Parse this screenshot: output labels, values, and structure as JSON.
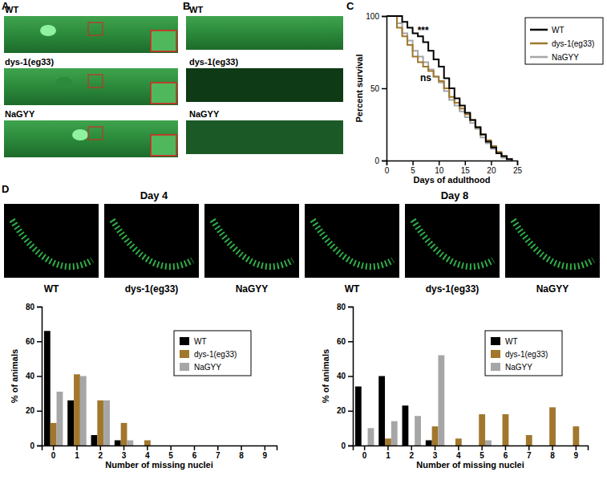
{
  "panels": {
    "labels": [
      "A",
      "B",
      "C",
      "D"
    ],
    "A": {
      "rows": [
        "WT",
        "dys-1(eg33)",
        "NaGYY"
      ]
    },
    "B": {
      "rows": [
        "WT",
        "dys-1(eg33)",
        "NaGYY"
      ]
    },
    "D": {
      "images": [
        "WT",
        "dys-1(eg33)",
        "NaGYY",
        "WT",
        "dys-1(eg33)",
        "NaGYY"
      ]
    }
  },
  "chart_data": [
    {
      "type": "line",
      "line_style": "step",
      "x": [
        0,
        2,
        3,
        4,
        5,
        6,
        7,
        8,
        9,
        10,
        11,
        12,
        13,
        14,
        15,
        16,
        17,
        18,
        19,
        20,
        21,
        22,
        23,
        24
      ],
      "series": [
        {
          "name": "WT",
          "color": "#000000",
          "values": [
            100,
            100,
            96,
            92,
            88,
            86,
            82,
            76,
            70,
            65,
            57,
            50,
            43,
            38,
            33,
            28,
            23,
            18,
            13,
            9,
            5,
            3,
            1,
            0
          ]
        },
        {
          "name": "dys-1(eg33)",
          "color": "#a0772d",
          "values": [
            100,
            92,
            86,
            80,
            72,
            68,
            65,
            62,
            58,
            55,
            50,
            44,
            40,
            36,
            32,
            28,
            23,
            18,
            14,
            10,
            6,
            3,
            1,
            0
          ]
        },
        {
          "name": "NaGYY",
          "color": "#a6a6a6",
          "values": [
            100,
            95,
            88,
            83,
            76,
            72,
            68,
            63,
            58,
            54,
            48,
            42,
            38,
            34,
            30,
            26,
            22,
            16,
            12,
            8,
            5,
            2,
            1,
            0
          ]
        }
      ],
      "xlabel": "Days of adulthood",
      "ylabel": "Percent survival",
      "xlim": [
        0,
        25
      ],
      "xticks": [
        0,
        5,
        10,
        15,
        20,
        25
      ],
      "ylim": [
        0,
        100
      ],
      "yticks": [
        0,
        50,
        100
      ],
      "legend": "right",
      "annotations": [
        {
          "text": "***",
          "x": 7,
          "y": 88
        },
        {
          "text": "ns",
          "x": 7.5,
          "y": 55
        }
      ]
    },
    {
      "type": "bar",
      "title": "Day 4",
      "categories": [
        "0",
        "1",
        "2",
        "3",
        "4",
        "5",
        "6",
        "7",
        "8",
        "9"
      ],
      "series": [
        {
          "name": "WT",
          "color": "#000000",
          "values": [
            66,
            26,
            6,
            3,
            0,
            0,
            0,
            0,
            0,
            0
          ]
        },
        {
          "name": "dys-1(eg33)",
          "color": "#a0772d",
          "values": [
            13,
            41,
            26,
            13,
            3,
            0,
            0,
            0,
            0,
            0
          ]
        },
        {
          "name": "NaGYY",
          "color": "#a6a6a6",
          "values": [
            31,
            40,
            26,
            3,
            0,
            0,
            0,
            0,
            0,
            0
          ]
        }
      ],
      "xlabel": "Number of missing nuclei",
      "ylabel": "% of animals",
      "ylim": [
        0,
        80
      ],
      "yticks": [
        0,
        20,
        40,
        60,
        80
      ],
      "legend": "upper right"
    },
    {
      "type": "bar",
      "title": "Day 8",
      "categories": [
        "0",
        "1",
        "2",
        "3",
        "4",
        "5",
        "6",
        "7",
        "8",
        "9"
      ],
      "series": [
        {
          "name": "WT",
          "color": "#000000",
          "values": [
            34,
            40,
            23,
            3,
            0,
            0,
            0,
            0,
            0,
            0
          ]
        },
        {
          "name": "dys-1(eg33)",
          "color": "#a0772d",
          "values": [
            0,
            4,
            0,
            11,
            4,
            18,
            18,
            6,
            22,
            11
          ]
        },
        {
          "name": "NaGYY",
          "color": "#a6a6a6",
          "values": [
            10,
            14,
            17,
            52,
            0,
            3,
            0,
            0,
            0,
            0
          ]
        }
      ],
      "xlabel": "Number of missing nuclei",
      "ylabel": "% of animals",
      "ylim": [
        0,
        80
      ],
      "yticks": [
        0,
        20,
        40,
        60,
        80
      ],
      "legend": "upper right"
    }
  ]
}
